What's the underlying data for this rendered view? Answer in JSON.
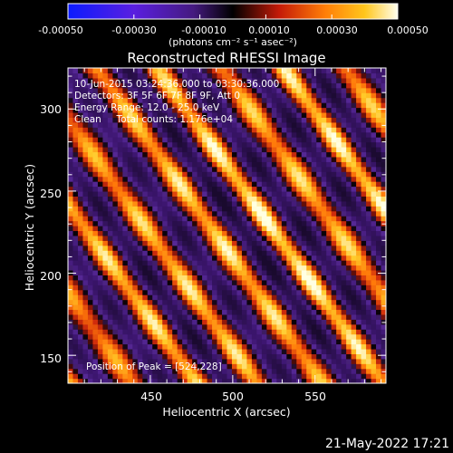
{
  "colorbar": {
    "ticks": [
      "-0.00050",
      "-0.00030",
      "-0.00010",
      "0.00010",
      "0.00030",
      "0.00050"
    ],
    "tick_values": [
      -0.0005,
      -0.0003,
      -0.0001,
      0.0001,
      0.0003,
      0.0005
    ],
    "range": [
      -0.0005,
      0.0005
    ],
    "units": "(photons cm⁻² s⁻¹ asec⁻²)"
  },
  "chart_data": {
    "type": "heatmap",
    "title": "Reconstructed RHESSI Image",
    "xlabel": "Heliocentric X (arcsec)",
    "ylabel": "Heliocentric Y (arcsec)",
    "xlim": [
      400,
      593
    ],
    "ylim": [
      133,
      325
    ],
    "xticks": [
      450,
      500,
      550
    ],
    "yticks": [
      150,
      200,
      250,
      300
    ],
    "colormap": "dark purple (negative) through black to red, orange and yellow-white (positive)",
    "value_range": [
      -0.0005,
      0.0005
    ],
    "pattern": "diagonal bright ridges running from upper-left to lower-right, separated by dark purple troughs",
    "peak": [
      524,
      228
    ],
    "annotations": {
      "time": "10-Jun-2015 03:24:36.000 to 03:30:36.000",
      "detectors": "Detectors: 3F 5F 6F 7F 8F 9F, Att 0",
      "energy": "Energy Range: 12.0 - 25.0 keV",
      "clean": "Clean     Total counts: 1.176e+04",
      "peak_label": "Position of Peak = [524,228]"
    }
  },
  "footer": {
    "date": "21-May-2022 17:21"
  }
}
